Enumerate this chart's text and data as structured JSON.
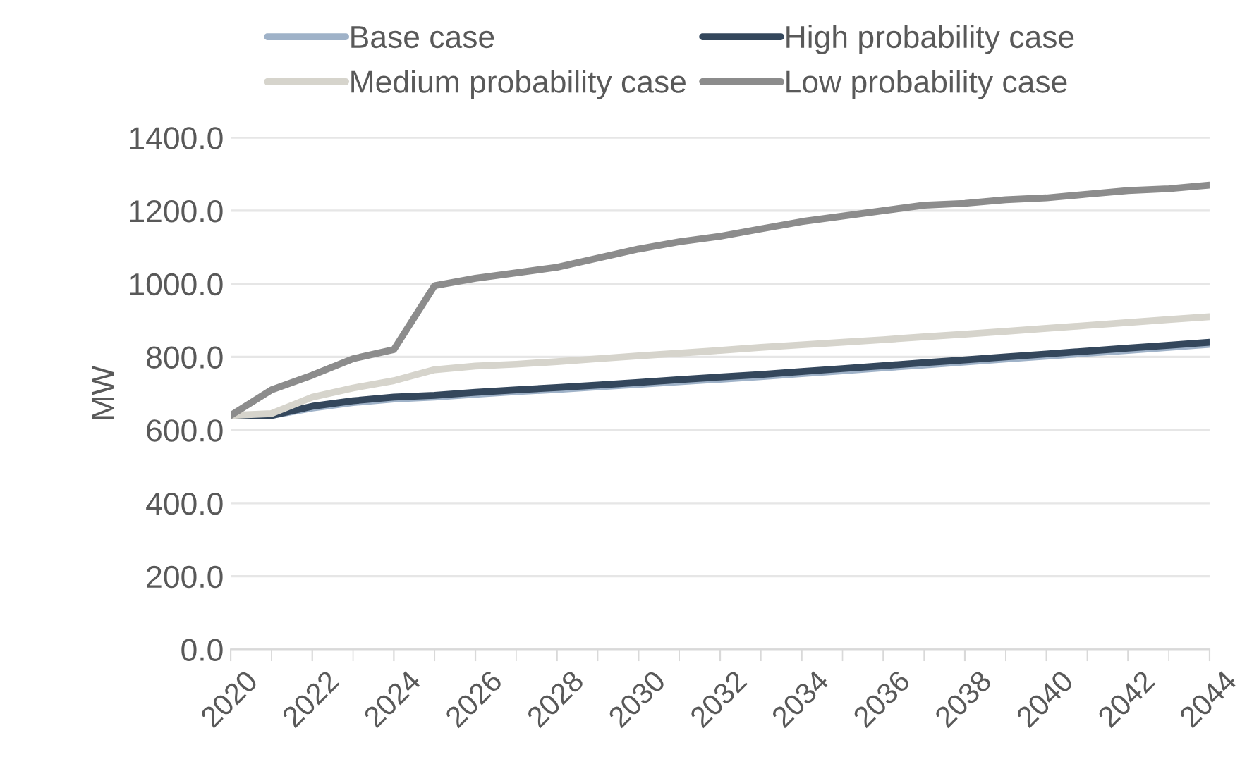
{
  "chart_data": {
    "type": "line",
    "ylabel": "MW",
    "x": [
      2020,
      2021,
      2022,
      2023,
      2024,
      2025,
      2026,
      2027,
      2028,
      2029,
      2030,
      2031,
      2032,
      2033,
      2034,
      2035,
      2036,
      2037,
      2038,
      2039,
      2040,
      2041,
      2042,
      2043,
      2044
    ],
    "series": [
      {
        "name": "Base case",
        "color": "#9fb2c8",
        "values": [
          640,
          640,
          660,
          675,
          685,
          690,
          698,
          705,
          711,
          718,
          725,
          732,
          739,
          746,
          754,
          762,
          770,
          778,
          786,
          794,
          802,
          810,
          818,
          826,
          834
        ]
      },
      {
        "name": "High probability case",
        "color": "#34475c",
        "values": [
          640,
          640,
          665,
          680,
          690,
          695,
          703,
          710,
          716,
          723,
          730,
          738,
          745,
          752,
          760,
          768,
          776,
          784,
          792,
          800,
          808,
          816,
          824,
          832,
          840
        ]
      },
      {
        "name": "Medium probability case",
        "color": "#d6d4cc",
        "values": [
          640,
          645,
          690,
          715,
          735,
          765,
          775,
          780,
          787,
          795,
          803,
          810,
          818,
          826,
          833,
          840,
          847,
          855,
          862,
          870,
          878,
          886,
          894,
          902,
          910
        ]
      },
      {
        "name": "Low probability case",
        "color": "#8c8c8c",
        "values": [
          640,
          710,
          750,
          795,
          820,
          995,
          1015,
          1030,
          1045,
          1070,
          1095,
          1115,
          1130,
          1150,
          1170,
          1185,
          1200,
          1215,
          1220,
          1230,
          1235,
          1245,
          1255,
          1260,
          1270
        ]
      }
    ],
    "xlim": [
      2020,
      2044
    ],
    "xticks": [
      2020,
      2022,
      2024,
      2026,
      2028,
      2030,
      2032,
      2034,
      2036,
      2038,
      2040,
      2042,
      2044
    ],
    "ylim": [
      0,
      1400
    ],
    "yticks": [
      {
        "value": 0,
        "label": "0.0"
      },
      {
        "value": 200,
        "label": "200.0"
      },
      {
        "value": 400,
        "label": "400.0"
      },
      {
        "value": 600,
        "label": "600.0"
      },
      {
        "value": 800,
        "label": "800.0"
      },
      {
        "value": 1000,
        "label": "1000.0"
      },
      {
        "value": 1200,
        "label": "1200.0"
      },
      {
        "value": 1400,
        "label": "1400.0"
      }
    ],
    "grid": "y",
    "legend": "top",
    "marker": "none",
    "line_style": "solid"
  }
}
